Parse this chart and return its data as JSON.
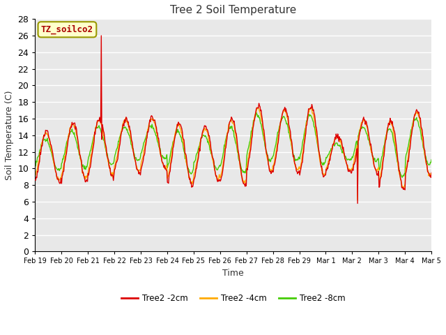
{
  "title": "Tree 2 Soil Temperature",
  "xlabel": "Time",
  "ylabel": "Soil Temperature (C)",
  "annotation_text": "TZ_soilco2",
  "annotation_bg": "#ffffcc",
  "annotation_border": "#999900",
  "annotation_fg": "#aa0000",
  "ylim": [
    0,
    28
  ],
  "yticks": [
    0,
    2,
    4,
    6,
    8,
    10,
    12,
    14,
    16,
    18,
    20,
    22,
    24,
    26,
    28
  ],
  "bg_color": "#e8e8e8",
  "grid_color": "#ffffff",
  "series": {
    "2cm": {
      "color": "#dd0000",
      "label": "Tree2 -2cm"
    },
    "4cm": {
      "color": "#ffaa00",
      "label": "Tree2 -4cm"
    },
    "8cm": {
      "color": "#44cc00",
      "label": "Tree2 -8cm"
    }
  },
  "x_tick_labels": [
    "Feb 19",
    "Feb 20",
    "Feb 21",
    "Feb 22",
    "Feb 23",
    "Feb 24",
    "Feb 25",
    "Feb 26",
    "Feb 27",
    "Feb 28",
    "Feb 29",
    "Mar 1",
    "Mar 2",
    "Mar 3",
    "Mar 4",
    "Mar 5"
  ],
  "num_days": 15,
  "pts_per_day": 48,
  "troughs_2cm": [
    8.3,
    8.5,
    9.0,
    9.5,
    9.8,
    8.0,
    8.5,
    8.0,
    9.5,
    9.5,
    9.0,
    9.5,
    9.5,
    7.5,
    9.0,
    8.5
  ],
  "peaks_2cm": [
    14.5,
    15.5,
    16.0,
    16.0,
    16.2,
    15.5,
    15.0,
    16.0,
    17.5,
    17.2,
    17.5,
    14.0,
    16.0,
    15.8,
    17.0,
    16.5
  ],
  "trough_shift_4cm": 0.3,
  "peak_shift_4cm": -0.2,
  "trough_shift_8cm": 1.5,
  "peak_shift_8cm": -1.0,
  "phase_shift_4cm": 1.0,
  "phase_shift_8cm": 2.5
}
